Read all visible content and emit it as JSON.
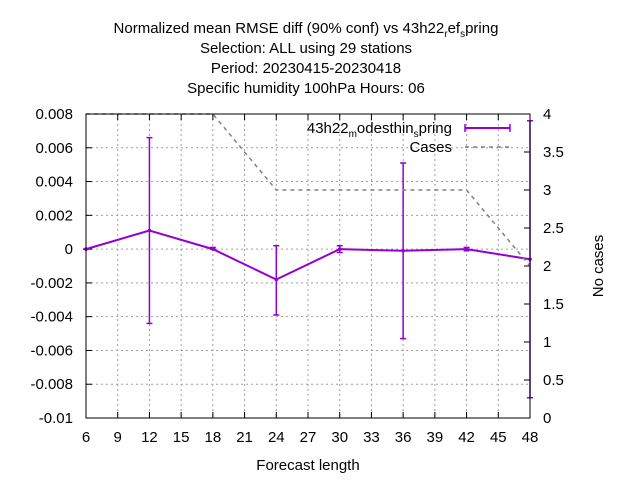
{
  "chart_data": {
    "type": "line",
    "title_lines": [
      {
        "parts": [
          {
            "text": "Normalized mean RMSE diff (90% conf) vs 43h22"
          },
          {
            "text": "r",
            "sub": true
          },
          {
            "text": "ef"
          },
          {
            "text": "s",
            "sub": true
          },
          {
            "text": "pring"
          }
        ]
      },
      {
        "parts": [
          {
            "text": "Selection: ALL using    29 stations"
          }
        ]
      },
      {
        "parts": [
          {
            "text": "Period: 20230415-20230418"
          }
        ]
      },
      {
        "parts": [
          {
            "text": "Specific humidity 100hPa   Hours:  06"
          }
        ]
      }
    ],
    "xlabel": "Forecast length",
    "ylabel": "",
    "y2label": "No cases",
    "xlim": [
      6,
      48
    ],
    "ylim": [
      -0.01,
      0.008
    ],
    "y2lim": [
      0,
      4
    ],
    "x_ticks": [
      "6",
      "9",
      "12",
      "15",
      "18",
      "21",
      "24",
      "27",
      "30",
      "33",
      "36",
      "39",
      "42",
      "45",
      "48"
    ],
    "y_ticks": [
      "0.008",
      "0.006",
      "0.004",
      "0.002",
      "0",
      "-0.002",
      "-0.004",
      "-0.006",
      "-0.008",
      "-0.01"
    ],
    "y2_ticks": [
      "4",
      "3.5",
      "3",
      "2.5",
      "2",
      "1.5",
      "1",
      "0.5",
      "0"
    ],
    "grid": true,
    "legend_position": "top-right",
    "series": [
      {
        "name_parts": [
          {
            "text": "43h22"
          },
          {
            "text": "m",
            "sub": true
          },
          {
            "text": "odesthin"
          },
          {
            "text": "s",
            "sub": true
          },
          {
            "text": "pring"
          }
        ],
        "color": "#9400d3",
        "style": "line-errorbars",
        "x": [
          6,
          12,
          18,
          24,
          30,
          36,
          42,
          48
        ],
        "y": [
          0.0,
          0.0011,
          0.0,
          -0.0018,
          0.0,
          -0.0001,
          0.0,
          -0.0006
        ],
        "err_low": [
          0.0,
          -0.0044,
          0.0,
          -0.0039,
          -0.0002,
          -0.0053,
          -0.0001,
          -0.0088
        ],
        "err_high": [
          0.0,
          0.0066,
          0.0001,
          0.0002,
          0.0002,
          0.0051,
          0.0001,
          0.0076
        ]
      },
      {
        "name": "Cases",
        "color": "#808080",
        "style": "dashed",
        "axis": "y2",
        "x": [
          6,
          12,
          18,
          24,
          30,
          36,
          42,
          48
        ],
        "y": [
          4,
          4,
          4,
          3,
          3,
          3,
          3,
          2
        ]
      }
    ]
  }
}
